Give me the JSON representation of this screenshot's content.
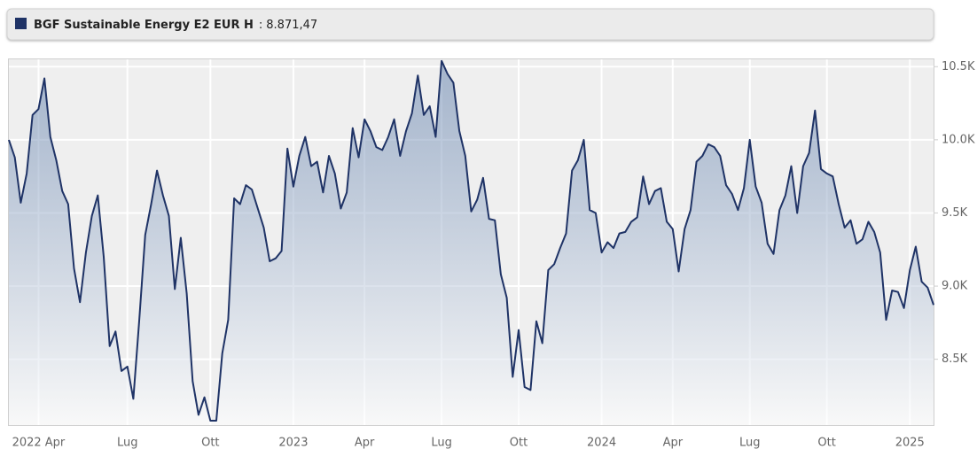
{
  "chart_data": {
    "type": "line",
    "series": [
      {
        "name": "BGF Sustainable Energy E2 EUR H",
        "color": "#1f3366",
        "values": [
          10000,
          9880,
          9570,
          9770,
          10170,
          10210,
          10420,
          10020,
          9860,
          9650,
          9560,
          9120,
          8890,
          9230,
          9480,
          9620,
          9200,
          8590,
          8690,
          8420,
          8450,
          8230,
          8770,
          9350,
          9560,
          9790,
          9620,
          9480,
          8980,
          9330,
          8950,
          8350,
          8120,
          8240,
          8080,
          8080,
          8540,
          8770,
          9600,
          9560,
          9690,
          9660,
          9530,
          9400,
          9170,
          9190,
          9240,
          9940,
          9680,
          9890,
          10020,
          9820,
          9850,
          9640,
          9890,
          9770,
          9530,
          9640,
          10080,
          9880,
          10140,
          10060,
          9950,
          9930,
          10020,
          10140,
          9890,
          10060,
          10180,
          10440,
          10170,
          10230,
          10020,
          10540,
          10450,
          10390,
          10060,
          9890,
          9510,
          9590,
          9740,
          9460,
          9450,
          9080,
          8920,
          8380,
          8700,
          8310,
          8290,
          8760,
          8610,
          9110,
          9150,
          9260,
          9360,
          9790,
          9860,
          10000,
          9520,
          9500,
          9230,
          9300,
          9260,
          9360,
          9370,
          9440,
          9470,
          9750,
          9560,
          9650,
          9670,
          9440,
          9390,
          9100,
          9390,
          9520,
          9850,
          9890,
          9970,
          9950,
          9890,
          9690,
          9630,
          9520,
          9670,
          10000,
          9680,
          9570,
          9290,
          9220,
          9520,
          9620,
          9820,
          9500,
          9820,
          9910,
          10200,
          9800,
          9770,
          9750,
          9560,
          9400,
          9450,
          9290,
          9320,
          9440,
          9370,
          9230,
          8770,
          8970,
          8960,
          8850,
          9110,
          9270,
          9030,
          8990,
          8871.47
        ],
        "value_labels": [
          null,
          null,
          null,
          null,
          null,
          null,
          null,
          null,
          null,
          null,
          null,
          null,
          null,
          null,
          null,
          null,
          null,
          null,
          null,
          null,
          null,
          null,
          null,
          null,
          null,
          null,
          null,
          null,
          null,
          null,
          null,
          null,
          null,
          null,
          null,
          null,
          null,
          null,
          null,
          null,
          null,
          null,
          null,
          null,
          null,
          null,
          null,
          null,
          null,
          null,
          null,
          null,
          null,
          null,
          null,
          null,
          null,
          null,
          null,
          null,
          null,
          null,
          null,
          null,
          null,
          null,
          null,
          null,
          null,
          null,
          null,
          null,
          null,
          null,
          null,
          null,
          null,
          null,
          null,
          null,
          null,
          null,
          null,
          null,
          null,
          null,
          null,
          null,
          null,
          null,
          null,
          null,
          null,
          null,
          null,
          null,
          null,
          null,
          null,
          null,
          null,
          null,
          null,
          null,
          null,
          null,
          null,
          null,
          null,
          null,
          null,
          null,
          null,
          null,
          null,
          null,
          null,
          null,
          null,
          null,
          null,
          null,
          null,
          null,
          null,
          null,
          null,
          null,
          null,
          null,
          null,
          null,
          null,
          null,
          null,
          null,
          null,
          null,
          null,
          null,
          null,
          null,
          null,
          null,
          null,
          null,
          null,
          null,
          null,
          null,
          null,
          null,
          null,
          null,
          null,
          null,
          "8.871,47"
        ]
      }
    ],
    "legend_separator": ":",
    "categories": [
      null,
      null,
      null,
      null,
      null,
      "2022 Apr",
      null,
      null,
      null,
      null,
      null,
      null,
      null,
      null,
      null,
      null,
      null,
      null,
      null,
      null,
      "Lug",
      null,
      null,
      null,
      null,
      null,
      null,
      null,
      null,
      null,
      null,
      null,
      null,
      null,
      "Ott",
      null,
      null,
      null,
      null,
      null,
      null,
      null,
      null,
      null,
      null,
      null,
      null,
      null,
      "2023",
      null,
      null,
      null,
      null,
      null,
      null,
      null,
      null,
      null,
      null,
      null,
      "Apr",
      null,
      null,
      null,
      null,
      null,
      null,
      null,
      null,
      null,
      null,
      null,
      null,
      "Lug",
      null,
      null,
      null,
      null,
      null,
      null,
      null,
      null,
      null,
      null,
      null,
      null,
      "Ott",
      null,
      null,
      null,
      null,
      null,
      null,
      null,
      null,
      null,
      null,
      null,
      null,
      null,
      "2024",
      null,
      null,
      null,
      null,
      null,
      null,
      null,
      null,
      null,
      null,
      null,
      "Apr",
      null,
      null,
      null,
      null,
      null,
      null,
      null,
      null,
      null,
      null,
      null,
      null,
      "Lug",
      null,
      null,
      null,
      null,
      null,
      null,
      null,
      null,
      null,
      null,
      null,
      null,
      "Ott",
      null,
      null,
      null,
      null,
      null,
      null,
      null,
      null,
      null,
      null,
      null,
      null,
      null,
      "2025",
      null,
      null,
      null,
      null
    ],
    "ylim": [
      8050,
      10550
    ],
    "yticks": [
      {
        "value": 8500,
        "label": "8.5K"
      },
      {
        "value": 9000,
        "label": "9.0K"
      },
      {
        "value": 9500,
        "label": "9.5K"
      },
      {
        "value": 10000,
        "label": "10.0K"
      },
      {
        "value": 10500,
        "label": "10.5K"
      }
    ],
    "grid": true
  }
}
